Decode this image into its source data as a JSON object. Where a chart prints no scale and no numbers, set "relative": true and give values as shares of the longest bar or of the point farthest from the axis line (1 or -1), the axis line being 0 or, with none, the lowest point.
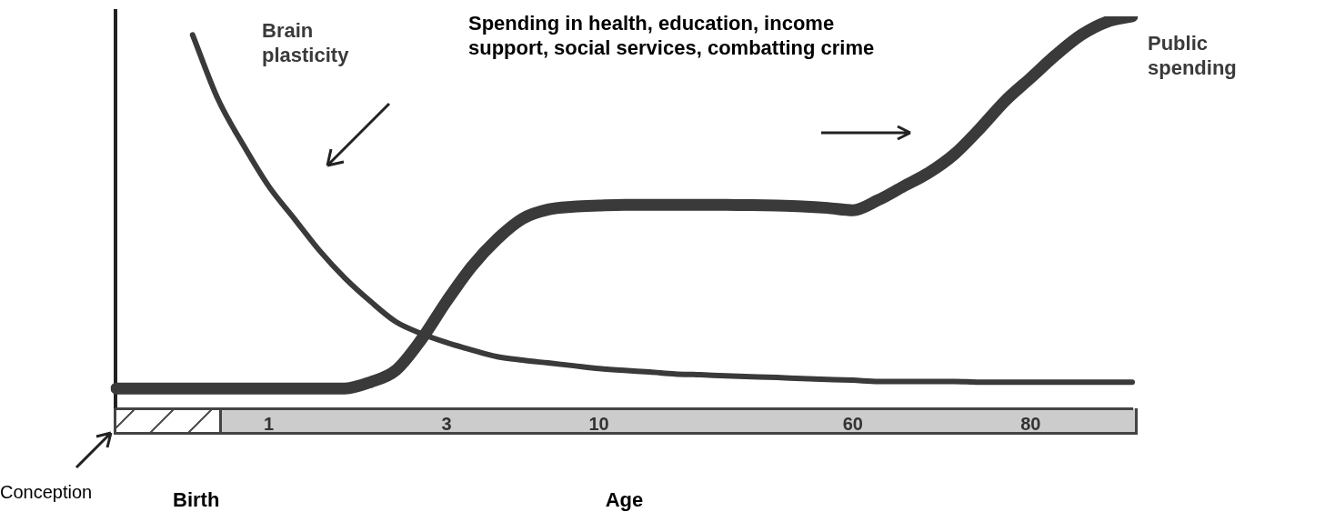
{
  "chart_data": {
    "type": "line",
    "relative": true,
    "xlabel": "Age",
    "grid": false,
    "legend": false,
    "marker": "none",
    "line_style": "solid",
    "categories": [
      null,
      null,
      null,
      null,
      null,
      null,
      "1",
      null,
      null,
      null,
      null,
      null,
      null,
      "3",
      null,
      null,
      null,
      null,
      null,
      "10",
      null,
      null,
      null,
      null,
      null,
      null,
      null,
      null,
      null,
      "60",
      null,
      null,
      null,
      null,
      null,
      null,
      "80",
      null,
      null,
      null,
      null
    ],
    "series": [
      {
        "name": "Brain plasticity",
        "color": "#3a3a3a",
        "values": [
          null,
          null,
          null,
          0.953,
          0.789,
          0.672,
          0.567,
          0.485,
          0.403,
          0.333,
          0.274,
          0.222,
          0.192,
          0.169,
          0.15,
          0.133,
          0.124,
          0.117,
          0.11,
          0.103,
          0.098,
          0.094,
          0.089,
          0.087,
          0.084,
          0.082,
          0.08,
          0.077,
          0.075,
          0.073,
          0.07,
          0.07,
          0.07,
          0.07,
          0.068,
          0.068,
          0.068,
          0.068,
          0.068,
          0.068,
          0.068
        ]
      },
      {
        "name": "Public spending",
        "color": "#3a3a3a",
        "values": [
          0.052,
          0.052,
          0.052,
          0.052,
          0.052,
          0.052,
          0.052,
          0.052,
          0.052,
          0.052,
          0.068,
          0.098,
          0.176,
          0.274,
          0.363,
          0.433,
          0.485,
          0.508,
          0.515,
          0.518,
          0.52,
          0.52,
          0.52,
          0.52,
          0.52,
          0.519,
          0.518,
          0.516,
          0.512,
          0.506,
          0.532,
          0.567,
          0.602,
          0.649,
          0.714,
          0.785,
          0.843,
          0.902,
          0.953,
          0.986,
          1
        ]
      }
    ],
    "annotations": [
      "Spending in health, education, income support, social services, combatting crime",
      "Conception",
      "Birth"
    ]
  }
}
